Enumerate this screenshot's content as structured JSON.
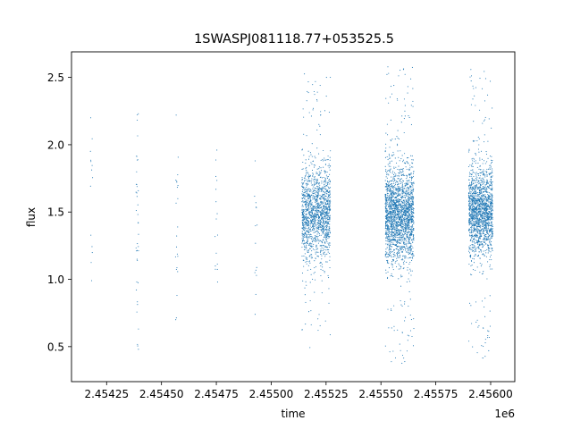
{
  "chart_data": {
    "type": "scatter",
    "title": "1SWASPJ081118.77+053525.5",
    "xlabel": "time",
    "ylabel": "flux",
    "x_offset_label": "1e6",
    "xlim": [
      2.45409,
      2.45611
    ],
    "ylim": [
      0.24,
      2.69
    ],
    "xticks": [
      2.45425,
      2.4545,
      2.45475,
      2.455,
      2.45525,
      2.4555,
      2.45575,
      2.456
    ],
    "xtick_labels": [
      "2.45425",
      "2.45450",
      "2.45475",
      "2.45500",
      "2.45525",
      "2.45550",
      "2.45575",
      "2.45600"
    ],
    "yticks": [
      0.5,
      1.0,
      1.5,
      2.0,
      2.5
    ],
    "ytick_labels": [
      "0.5",
      "1.0",
      "1.5",
      "2.0",
      "2.5"
    ],
    "grid": false,
    "legend": "none",
    "marker_color": "#1f77b4",
    "sparse_columns": [
      {
        "x": 2.45418,
        "y_min": 0.99,
        "y_max": 2.2,
        "count": 14
      },
      {
        "x": 2.45439,
        "y_min": 0.48,
        "y_max": 2.23,
        "count": 40
      },
      {
        "x": 2.45457,
        "y_min": 0.7,
        "y_max": 2.22,
        "count": 22
      },
      {
        "x": 2.45475,
        "y_min": 0.98,
        "y_max": 1.96,
        "count": 16
      },
      {
        "x": 2.45493,
        "y_min": 0.74,
        "y_max": 1.88,
        "count": 14
      }
    ],
    "dense_clusters": [
      {
        "x_start": 2.45514,
        "x_end": 2.45527,
        "y_center": 1.48,
        "y_spread": 0.17,
        "y_min": 0.45,
        "y_max": 2.53,
        "count": 1500
      },
      {
        "x_start": 2.45552,
        "x_end": 2.45565,
        "y_center": 1.48,
        "y_spread": 0.17,
        "y_min": 0.35,
        "y_max": 2.58,
        "count": 2100
      },
      {
        "x_start": 2.4559,
        "x_end": 2.45601,
        "y_center": 1.5,
        "y_spread": 0.16,
        "y_min": 0.39,
        "y_max": 2.56,
        "count": 1700
      }
    ]
  }
}
